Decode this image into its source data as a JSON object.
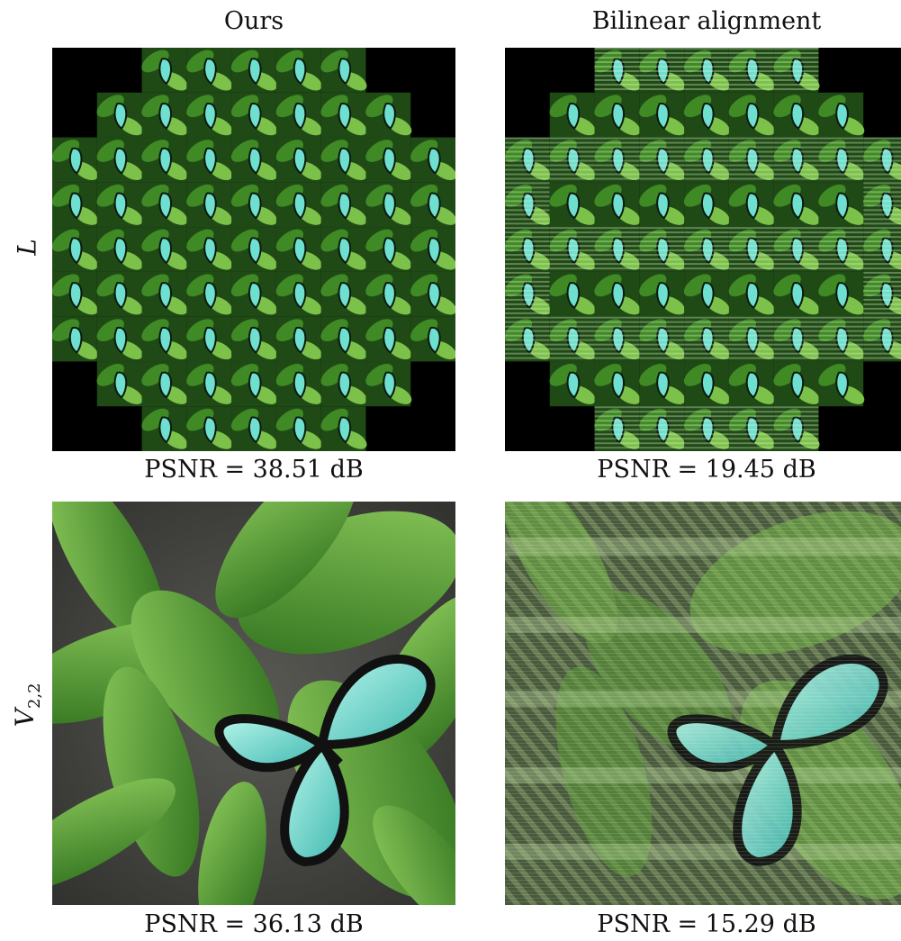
{
  "columns": [
    "Ours",
    "Bilinear alignment"
  ],
  "rows": [
    {
      "label_main": "L",
      "label_sub": ""
    },
    {
      "label_main": "V",
      "label_sub": "2,2"
    }
  ],
  "captions": {
    "top_left": "PSNR = 38.51 dB",
    "top_right": "PSNR = 19.45 dB",
    "bottom_left": "PSNR = 36.13 dB",
    "bottom_right": "PSNR = 15.29 dB"
  },
  "colors": {
    "leaf_dark": "#1f4a16",
    "leaf_mid": "#3f8a25",
    "leaf_light": "#7cc14a",
    "butterfly": "#6fe0d0",
    "background_stone": "#4a4a48",
    "black": "#000000"
  }
}
